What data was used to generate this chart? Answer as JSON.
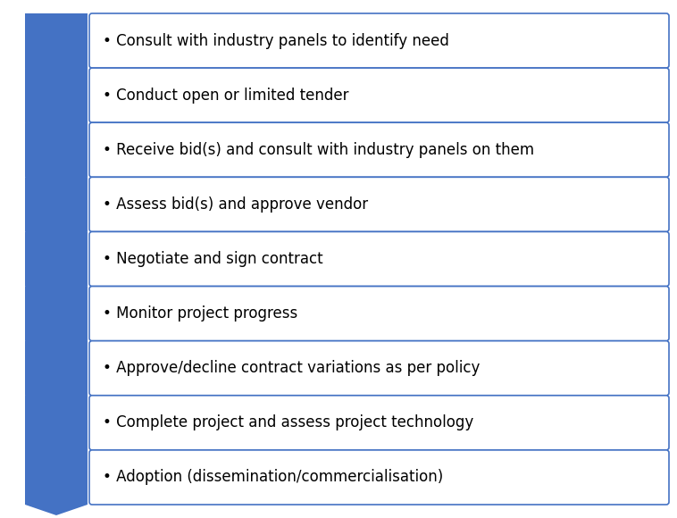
{
  "steps": [
    "Consult with industry panels to identify need",
    "Conduct open or limited tender",
    "Receive bid(s) and consult with industry panels on them",
    "Assess bid(s) and approve vendor",
    "Negotiate and sign contract",
    "Monitor project progress",
    "Approve/decline contract variations as per policy",
    "Complete project and assess project technology",
    "Adoption (dissemination/commercialisation)"
  ],
  "chevron_color": "#4472C4",
  "box_border_color": "#4472C4",
  "box_fill_color": "#FFFFFF",
  "background_color": "#FFFFFF",
  "text_color": "#000000",
  "bullet": "•",
  "font_size": 12.0,
  "fig_width": 7.58,
  "fig_height": 5.8
}
